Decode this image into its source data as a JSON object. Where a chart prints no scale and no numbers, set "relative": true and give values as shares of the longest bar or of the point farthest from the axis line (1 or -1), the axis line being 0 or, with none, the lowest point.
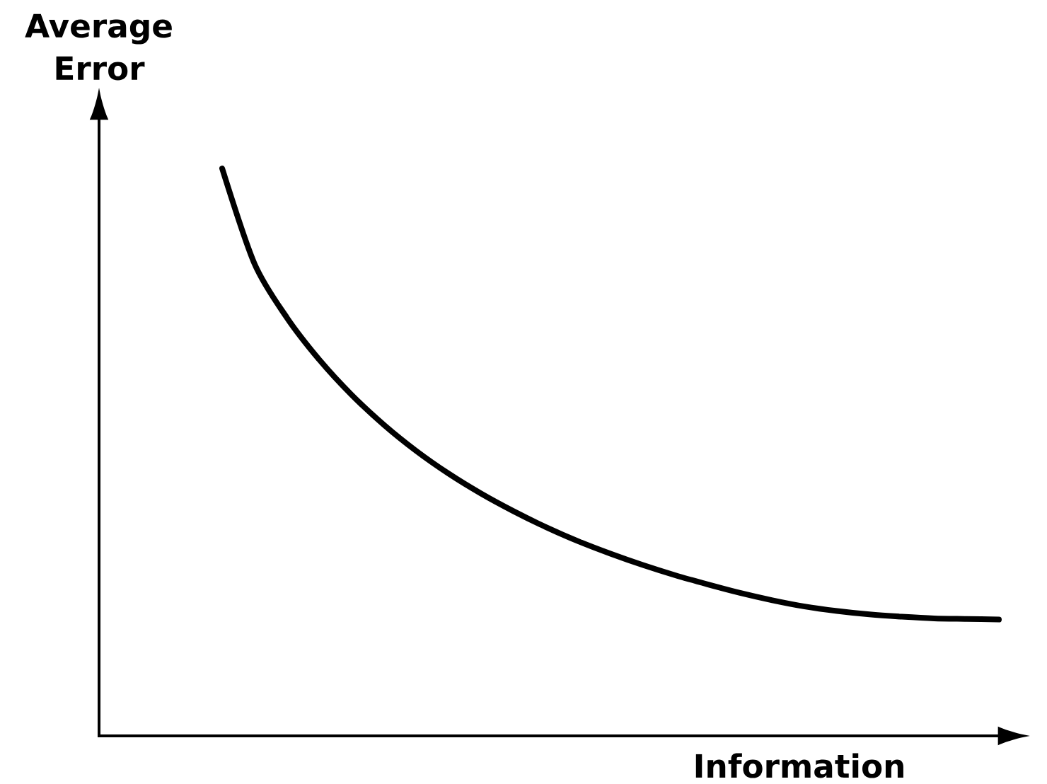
{
  "chart_data": {
    "type": "line",
    "xlabel": "Information",
    "ylabel": "Average Error",
    "relative": true,
    "categories": [
      null,
      null,
      null,
      null,
      null,
      null,
      null,
      null,
      null,
      null,
      null,
      null,
      null,
      null,
      null,
      null,
      null,
      null,
      null,
      null,
      null,
      null,
      null,
      null,
      null
    ],
    "series": [
      {
        "color": "#000000",
        "values": [
          1,
          0.832,
          0.737,
          0.663,
          0.601,
          0.548,
          0.502,
          0.462,
          0.427,
          0.396,
          0.368,
          0.343,
          0.321,
          0.301,
          0.283,
          0.267,
          0.252,
          0.239,
          0.228,
          0.22,
          0.214,
          0.21,
          0.207,
          0.206,
          0.205
        ]
      }
    ]
  }
}
